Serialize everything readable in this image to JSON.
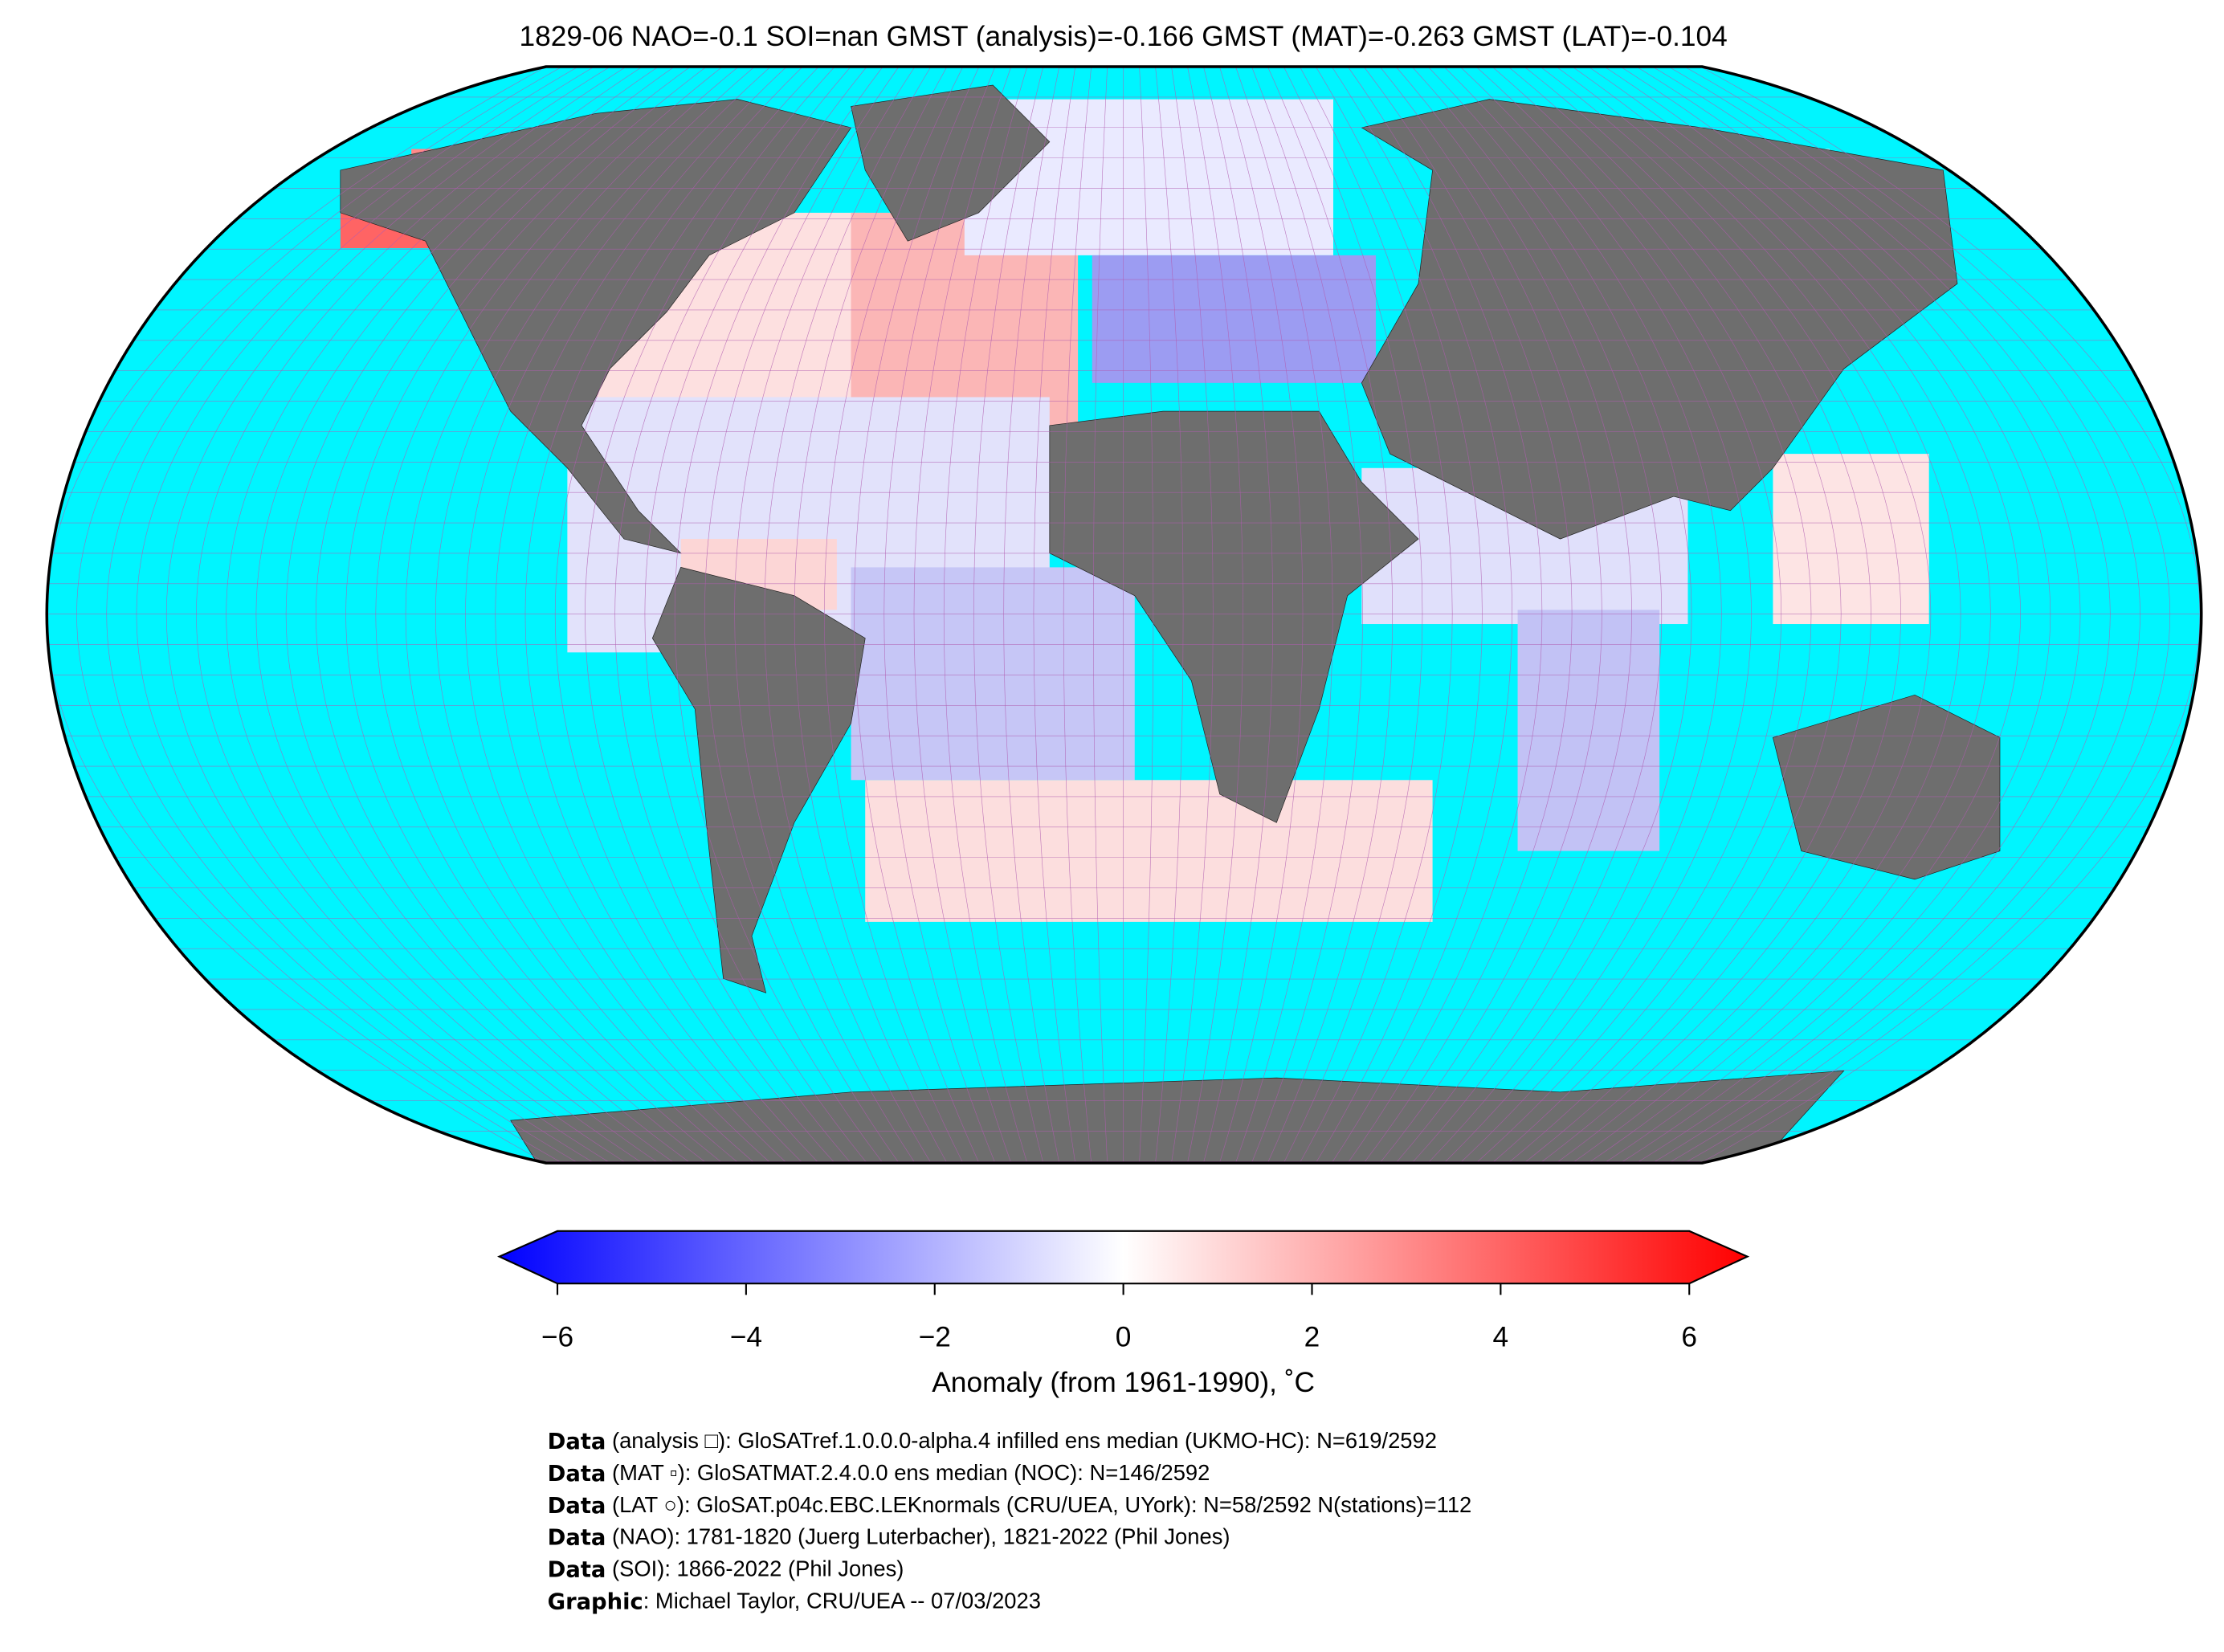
{
  "header": {
    "title": "1829-06 NAO=-0.1 SOI=nan GMST (analysis)=-0.166 GMST (MAT)=-0.263 GMST (LAT)=-0.104"
  },
  "colorbar": {
    "range": [
      -6,
      6
    ],
    "ticks": [
      {
        "value": -6,
        "label": "−6"
      },
      {
        "value": -4,
        "label": "−4"
      },
      {
        "value": -2,
        "label": "−2"
      },
      0,
      2,
      4,
      6
    ],
    "label": "Anomaly (from 1961-1990), ˚C"
  },
  "credits": [
    {
      "key": "Data",
      "text": " (analysis □): GloSATref.1.0.0.0-alpha.4 infilled ens median (UKMO-HC): N=619/2592"
    },
    {
      "key": "Data",
      "text": " (MAT ▫): GloSATMAT.2.4.0.0 ens median (NOC): N=146/2592"
    },
    {
      "key": "Data",
      "text": " (LAT ○): GloSAT.p04c.EBC.LEKnormals (CRU/UEA, UYork): N=58/2592 N(stations)=112"
    },
    {
      "key": "Data",
      "text": " (NAO): 1781-1820 (Juerg Luterbacher), 1821-2022 (Phil Jones)"
    },
    {
      "key": "Data",
      "text": " (SOI): 1866-2022 (Phil Jones)"
    },
    {
      "key": "Graphic",
      "text": ": Michael Taylor, CRU/UEA -- 07/03/2023"
    }
  ]
}
